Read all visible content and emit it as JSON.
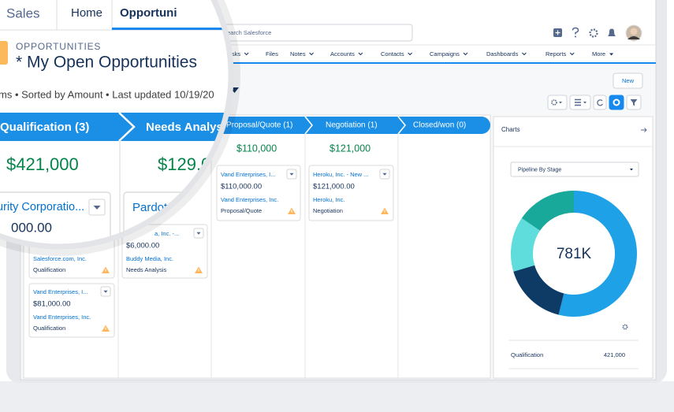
{
  "app_name": "Sales",
  "tabs": [
    "Home",
    "Opportuni"
  ],
  "search_placeholder": "Search Salesforce",
  "nav": [
    "Tasks",
    "Files",
    "Notes",
    "Accounts",
    "Contacts",
    "Campaigns",
    "Dashboards",
    "Reports",
    "More"
  ],
  "object_label": "OPPORTUNITIES",
  "list_title": "* My Open Opportunities",
  "list_meta": "ms • Sorted by Amount • Last updated 10/19/20",
  "new_button": "New",
  "stages": [
    {
      "label": "Qualification  (3)",
      "total": "$421,000"
    },
    {
      "label": "Needs Analys",
      "total": "$129,0"
    },
    {
      "label": "Proposal/Quote (1)",
      "total": "$110,000"
    },
    {
      "label": "Negotiation  (1)",
      "total": "$121,000"
    },
    {
      "label": "Closed/won  (0)"
    }
  ],
  "cards": [
    {
      "title": "urity Corporatio...",
      "amount": "000.00",
      "account": "Salesforce.com, Inc.",
      "stage": "Qualification"
    },
    {
      "title": "Vand Enterprises, I...",
      "amount": "$81,000.00",
      "account": "Vand Enterprises, Inc.",
      "stage": "Qualification"
    },
    {
      "title": "Pardot LI"
    },
    {
      "title": "a, Inc. -...",
      "amount": "$6,000.00",
      "account": "Buddy Media, Inc.",
      "stage": "Needs Analysis"
    },
    {
      "title": "Vand Enterprises, I...",
      "amount": "$110,000.00",
      "account": "Vand Enterprises, Inc.",
      "stage": "Proposal/Quote"
    },
    {
      "title": "Heroku, Inc. - New ...",
      "amount": "$121,000.00",
      "account": "Heroku, Inc.",
      "stage": "Negotiation"
    }
  ],
  "charts": {
    "title": "Charts",
    "report": "Pipeline By Stage",
    "center_label": "781K",
    "values": [
      421000,
      129000,
      110000,
      121000
    ],
    "colors": [
      "#1ea1e6",
      "#0d3b66",
      "#5fdcdc",
      "#19a99b"
    ],
    "row_label": "Qualification",
    "row_value": "421,000"
  }
}
